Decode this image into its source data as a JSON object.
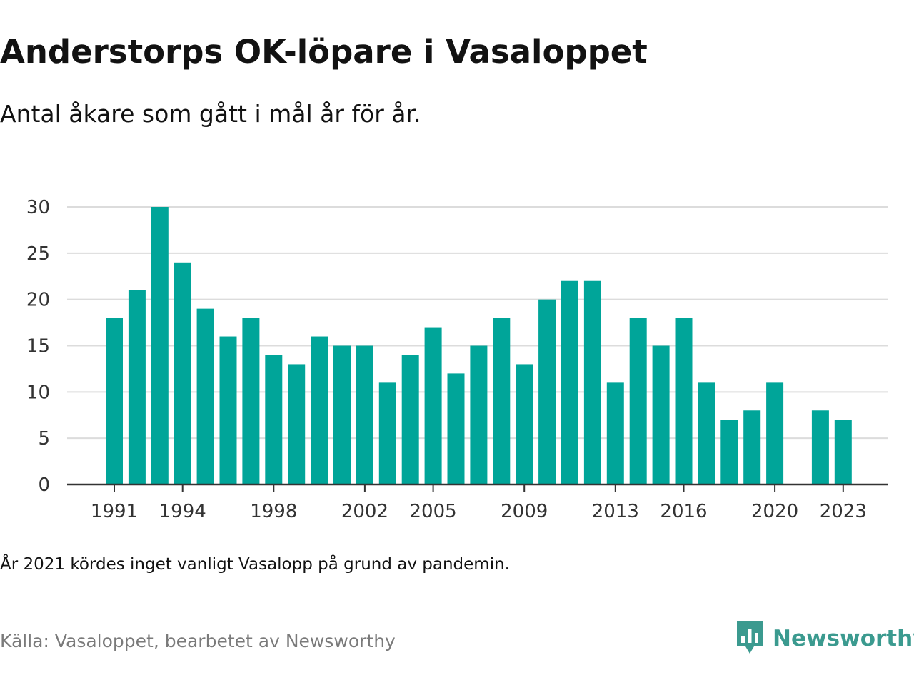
{
  "header": {
    "title": "Anderstorps OK-löpare i Vasaloppet",
    "subtitle": "Antal åkare som gått i mål år för år."
  },
  "footer": {
    "note": "År 2021 kördes inget vanligt Vasalopp på grund av pandemin.",
    "source": "Källa: Vasaloppet, bearbetet av Newsworthy",
    "brand": "Newsworthy",
    "brand_icon": "bar-chart-speech-bubble-icon"
  },
  "colors": {
    "bar": "#00a599",
    "grid": "#dcdcdc",
    "axis": "#333333",
    "brand": "#3b9a8f"
  },
  "chart_data": {
    "type": "bar",
    "title": "Anderstorps OK-löpare i Vasaloppet",
    "subtitle": "Antal åkare som gått i mål år för år.",
    "xlabel": "",
    "ylabel": "",
    "categories": [
      1991,
      1992,
      1993,
      1994,
      1995,
      1996,
      1997,
      1998,
      1999,
      2000,
      2001,
      2002,
      2003,
      2004,
      2005,
      2006,
      2007,
      2008,
      2009,
      2010,
      2011,
      2012,
      2013,
      2014,
      2015,
      2016,
      2017,
      2018,
      2019,
      2020,
      2021,
      2022,
      2023
    ],
    "values": [
      18,
      21,
      30,
      24,
      19,
      16,
      18,
      14,
      13,
      16,
      15,
      15,
      11,
      14,
      17,
      12,
      15,
      18,
      13,
      20,
      22,
      22,
      11,
      18,
      15,
      18,
      11,
      7,
      8,
      11,
      null,
      8,
      7
    ],
    "ylim": [
      0,
      30
    ],
    "yticks": [
      0,
      5,
      10,
      15,
      20,
      25,
      30
    ],
    "xtick_labels": [
      "1991",
      "1994",
      "1998",
      "2002",
      "2005",
      "2009",
      "2013",
      "2016",
      "2020",
      "2023"
    ],
    "grid": true,
    "legend": "none"
  }
}
